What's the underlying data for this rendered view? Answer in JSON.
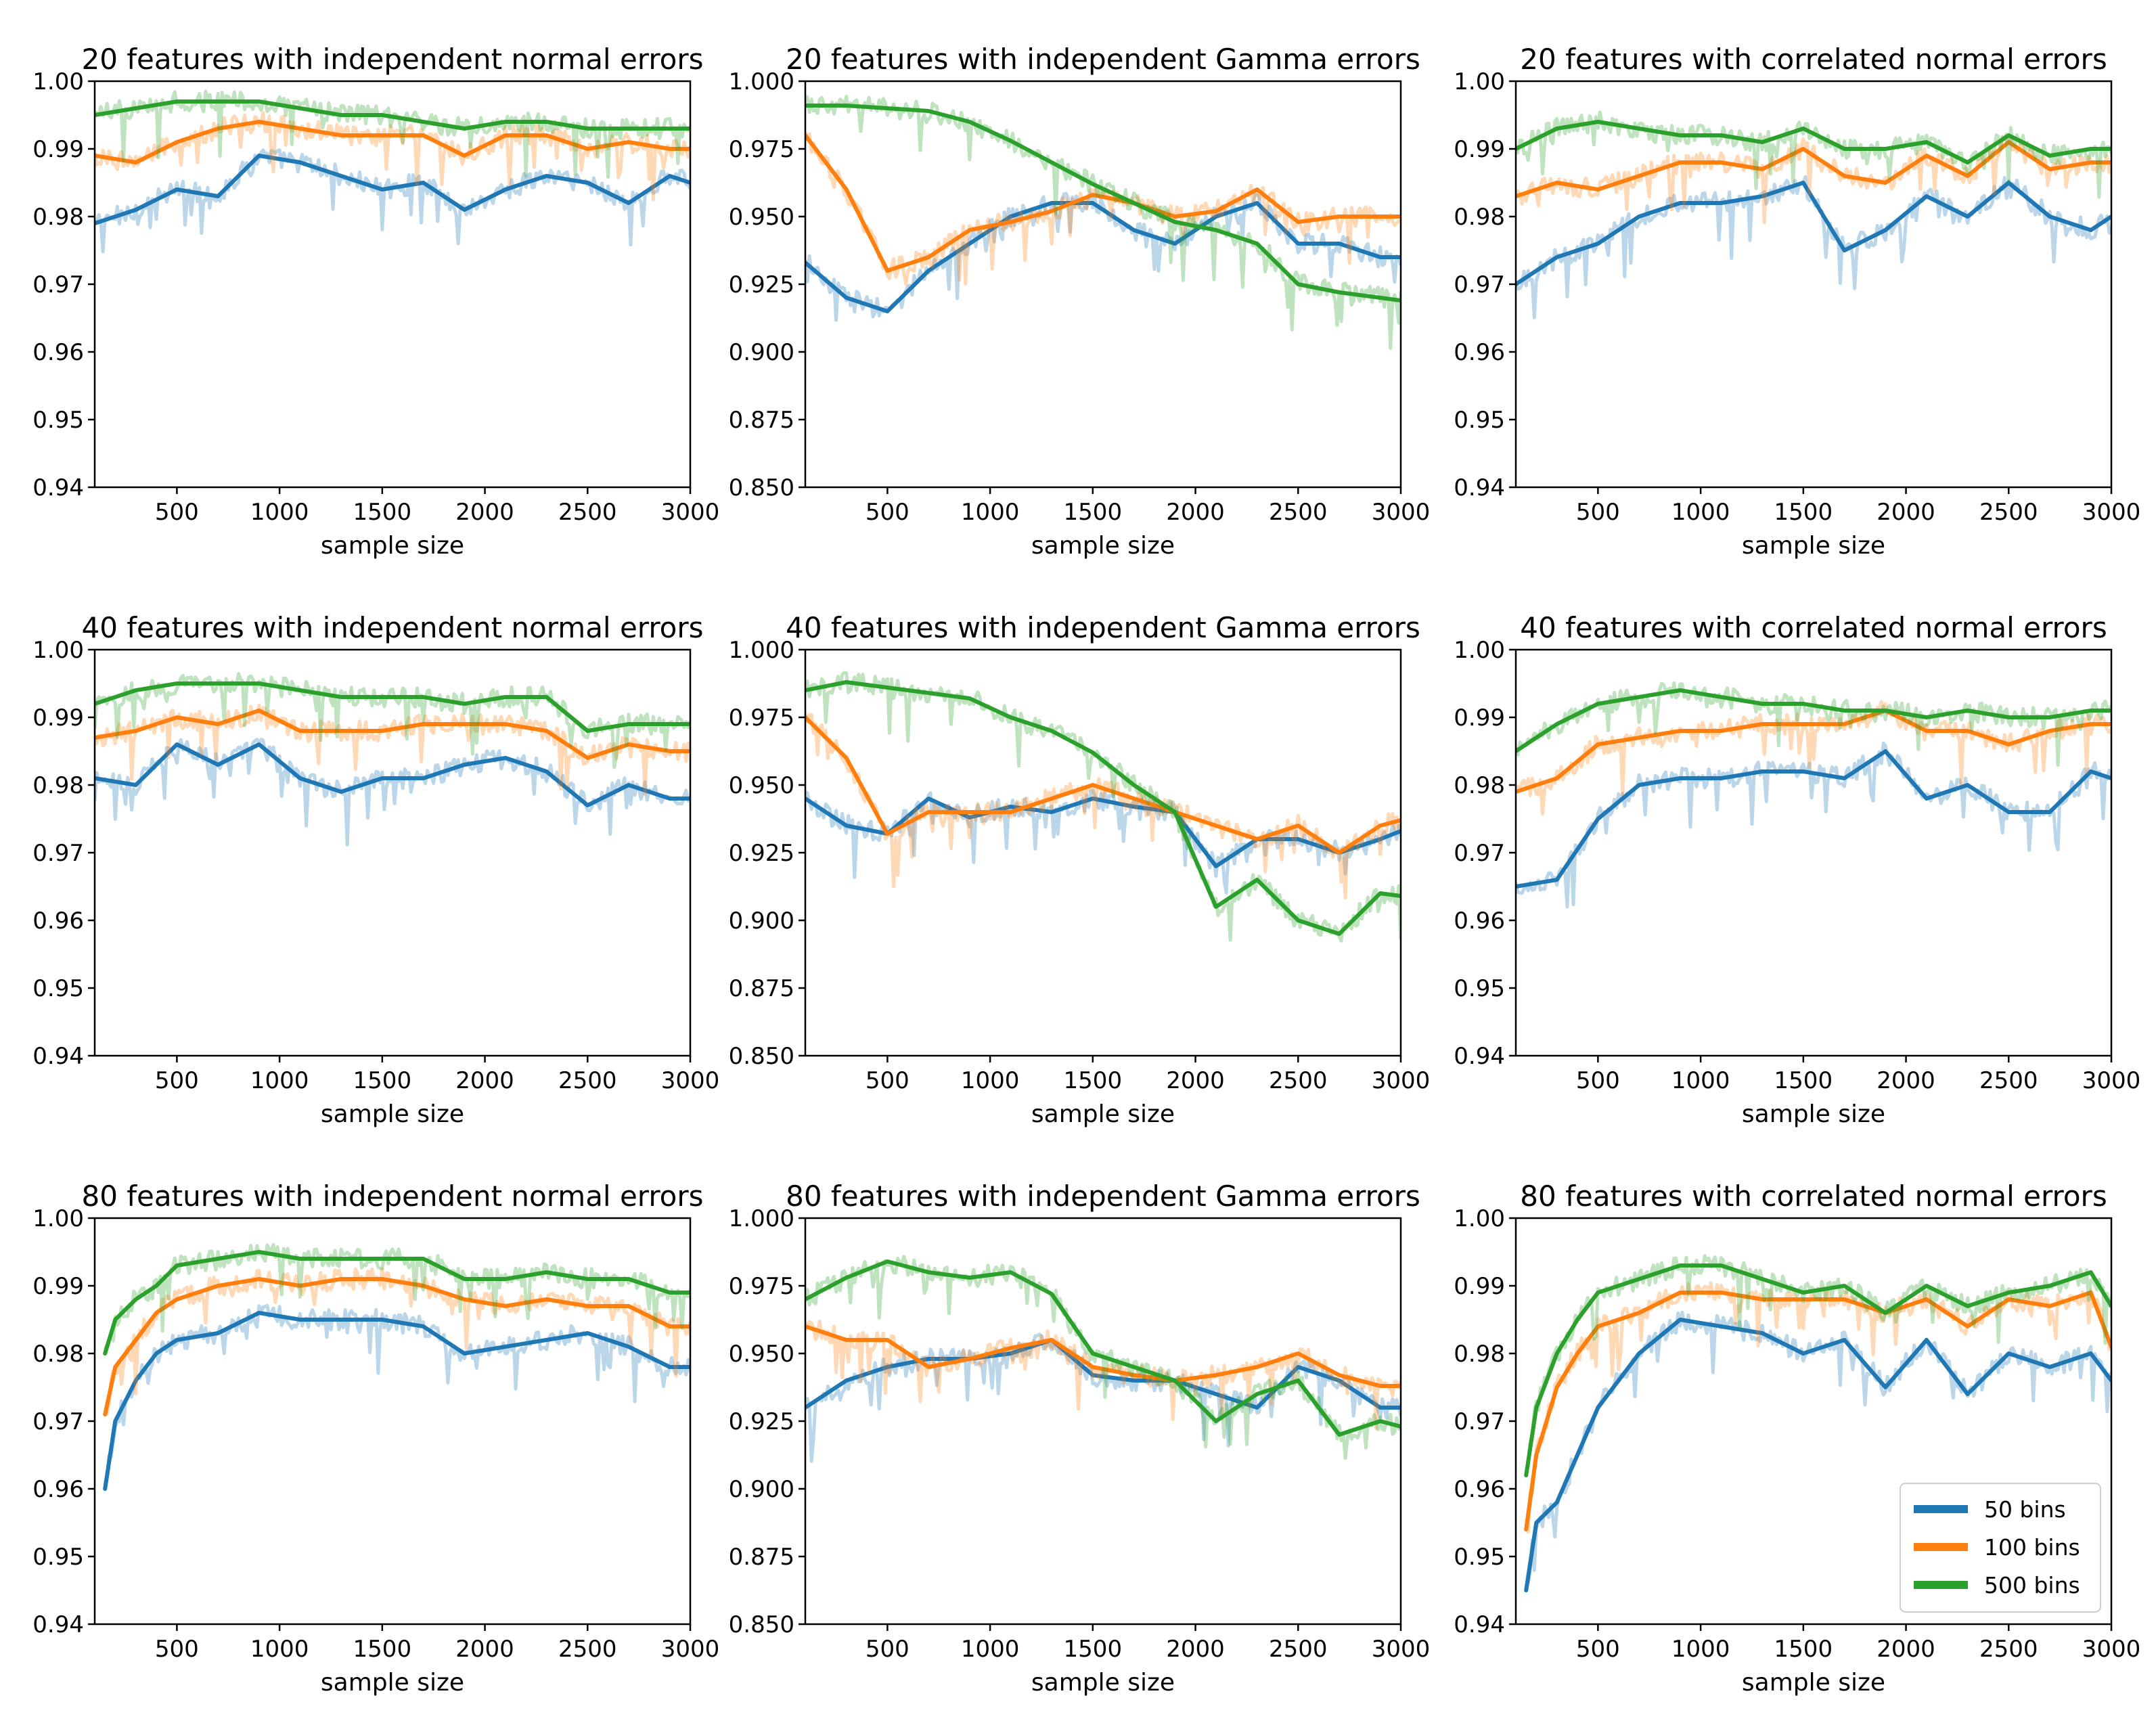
{
  "figure_legend": {
    "series": [
      {
        "name": "50 bins",
        "color": "#1f77b4"
      },
      {
        "name": "100 bins",
        "color": "#ff7f0e"
      },
      {
        "name": "500 bins",
        "color": "#2ca02c"
      }
    ],
    "placement": "lower-right of bottom-right panel"
  },
  "chart_data": [
    {
      "type": "line",
      "title": "20 features with independent normal errors",
      "xlabel": "sample size",
      "ylabel": "",
      "xlim": [
        100,
        3000
      ],
      "ylim": [
        0.94,
        1.0
      ],
      "xticks": [
        500,
        1000,
        1500,
        2000,
        2500,
        3000
      ],
      "yticks": [
        "0.94",
        "0.95",
        "0.96",
        "0.97",
        "0.98",
        "0.99",
        "1.00"
      ],
      "x": [
        100,
        300,
        500,
        700,
        900,
        1100,
        1300,
        1500,
        1700,
        1900,
        2100,
        2300,
        2500,
        2700,
        2900,
        3000
      ],
      "series": [
        {
          "name": "50 bins",
          "values": [
            0.979,
            0.981,
            0.984,
            0.983,
            0.989,
            0.988,
            0.986,
            0.984,
            0.985,
            0.981,
            0.984,
            0.986,
            0.985,
            0.982,
            0.986,
            0.985
          ]
        },
        {
          "name": "100 bins",
          "values": [
            0.989,
            0.988,
            0.991,
            0.993,
            0.994,
            0.993,
            0.992,
            0.992,
            0.992,
            0.989,
            0.992,
            0.992,
            0.99,
            0.991,
            0.99,
            0.99
          ]
        },
        {
          "name": "500 bins",
          "values": [
            0.995,
            0.996,
            0.997,
            0.997,
            0.997,
            0.996,
            0.995,
            0.995,
            0.994,
            0.993,
            0.994,
            0.994,
            0.993,
            0.993,
            0.993,
            0.993
          ]
        }
      ]
    },
    {
      "type": "line",
      "title": "20 features with independent Gamma errors",
      "xlabel": "sample size",
      "ylabel": "",
      "xlim": [
        100,
        3000
      ],
      "ylim": [
        0.85,
        1.0
      ],
      "xticks": [
        500,
        1000,
        1500,
        2000,
        2500,
        3000
      ],
      "yticks": [
        "0.850",
        "0.875",
        "0.900",
        "0.925",
        "0.950",
        "0.975",
        "1.000"
      ],
      "x": [
        100,
        300,
        500,
        700,
        900,
        1100,
        1300,
        1500,
        1700,
        1900,
        2100,
        2300,
        2500,
        2700,
        2900,
        3000
      ],
      "series": [
        {
          "name": "50 bins",
          "values": [
            0.933,
            0.92,
            0.915,
            0.93,
            0.94,
            0.95,
            0.955,
            0.955,
            0.945,
            0.94,
            0.95,
            0.955,
            0.94,
            0.94,
            0.935,
            0.935
          ]
        },
        {
          "name": "100 bins",
          "values": [
            0.98,
            0.96,
            0.93,
            0.935,
            0.945,
            0.948,
            0.952,
            0.958,
            0.955,
            0.95,
            0.952,
            0.96,
            0.948,
            0.95,
            0.95,
            0.95
          ]
        },
        {
          "name": "500 bins",
          "values": [
            0.991,
            0.991,
            0.99,
            0.989,
            0.985,
            0.978,
            0.97,
            0.962,
            0.955,
            0.948,
            0.945,
            0.94,
            0.925,
            0.922,
            0.92,
            0.919
          ]
        }
      ]
    },
    {
      "type": "line",
      "title": "20 features with correlated normal errors",
      "xlabel": "sample size",
      "ylabel": "",
      "xlim": [
        100,
        3000
      ],
      "ylim": [
        0.94,
        1.0
      ],
      "xticks": [
        500,
        1000,
        1500,
        2000,
        2500,
        3000
      ],
      "yticks": [
        "0.94",
        "0.95",
        "0.96",
        "0.97",
        "0.98",
        "0.99",
        "1.00"
      ],
      "x": [
        100,
        300,
        500,
        700,
        900,
        1100,
        1300,
        1500,
        1700,
        1900,
        2100,
        2300,
        2500,
        2700,
        2900,
        3000
      ],
      "series": [
        {
          "name": "50 bins",
          "values": [
            0.97,
            0.974,
            0.976,
            0.98,
            0.982,
            0.982,
            0.983,
            0.985,
            0.975,
            0.978,
            0.983,
            0.98,
            0.985,
            0.98,
            0.978,
            0.98
          ]
        },
        {
          "name": "100 bins",
          "values": [
            0.983,
            0.985,
            0.984,
            0.986,
            0.988,
            0.988,
            0.987,
            0.99,
            0.986,
            0.985,
            0.989,
            0.986,
            0.991,
            0.987,
            0.988,
            0.988
          ]
        },
        {
          "name": "500 bins",
          "values": [
            0.99,
            0.993,
            0.994,
            0.993,
            0.992,
            0.992,
            0.991,
            0.993,
            0.99,
            0.99,
            0.991,
            0.988,
            0.992,
            0.989,
            0.99,
            0.99
          ]
        }
      ]
    },
    {
      "type": "line",
      "title": "40 features with independent normal errors",
      "xlabel": "sample size",
      "ylabel": "",
      "xlim": [
        100,
        3000
      ],
      "ylim": [
        0.94,
        1.0
      ],
      "xticks": [
        500,
        1000,
        1500,
        2000,
        2500,
        3000
      ],
      "yticks": [
        "0.94",
        "0.95",
        "0.96",
        "0.97",
        "0.98",
        "0.99",
        "1.00"
      ],
      "x": [
        100,
        300,
        500,
        700,
        900,
        1100,
        1300,
        1500,
        1700,
        1900,
        2100,
        2300,
        2500,
        2700,
        2900,
        3000
      ],
      "series": [
        {
          "name": "50 bins",
          "values": [
            0.981,
            0.98,
            0.986,
            0.983,
            0.986,
            0.981,
            0.979,
            0.981,
            0.981,
            0.983,
            0.984,
            0.982,
            0.977,
            0.98,
            0.978,
            0.978
          ]
        },
        {
          "name": "100 bins",
          "values": [
            0.987,
            0.988,
            0.99,
            0.989,
            0.991,
            0.988,
            0.988,
            0.988,
            0.989,
            0.989,
            0.989,
            0.988,
            0.984,
            0.986,
            0.985,
            0.985
          ]
        },
        {
          "name": "500 bins",
          "values": [
            0.992,
            0.994,
            0.995,
            0.995,
            0.995,
            0.994,
            0.993,
            0.993,
            0.993,
            0.992,
            0.993,
            0.993,
            0.988,
            0.989,
            0.989,
            0.989
          ]
        }
      ]
    },
    {
      "type": "line",
      "title": "40 features with independent Gamma errors",
      "xlabel": "sample size",
      "ylabel": "",
      "xlim": [
        100,
        3000
      ],
      "ylim": [
        0.85,
        1.0
      ],
      "xticks": [
        500,
        1000,
        1500,
        2000,
        2500,
        3000
      ],
      "yticks": [
        "0.850",
        "0.875",
        "0.900",
        "0.925",
        "0.950",
        "0.975",
        "1.000"
      ],
      "x": [
        100,
        300,
        500,
        700,
        900,
        1100,
        1300,
        1500,
        1700,
        1900,
        2100,
        2300,
        2500,
        2700,
        2900,
        3000
      ],
      "series": [
        {
          "name": "50 bins",
          "values": [
            0.945,
            0.935,
            0.932,
            0.945,
            0.938,
            0.942,
            0.94,
            0.945,
            0.942,
            0.94,
            0.92,
            0.93,
            0.93,
            0.925,
            0.93,
            0.933
          ]
        },
        {
          "name": "100 bins",
          "values": [
            0.975,
            0.96,
            0.932,
            0.94,
            0.94,
            0.94,
            0.945,
            0.95,
            0.945,
            0.94,
            0.935,
            0.93,
            0.935,
            0.925,
            0.935,
            0.937
          ]
        },
        {
          "name": "500 bins",
          "values": [
            0.985,
            0.988,
            0.986,
            0.984,
            0.982,
            0.975,
            0.97,
            0.962,
            0.95,
            0.94,
            0.905,
            0.915,
            0.9,
            0.895,
            0.91,
            0.909
          ]
        }
      ]
    },
    {
      "type": "line",
      "title": "40 features with correlated normal errors",
      "xlabel": "sample size",
      "ylabel": "",
      "xlim": [
        100,
        3000
      ],
      "ylim": [
        0.94,
        1.0
      ],
      "xticks": [
        500,
        1000,
        1500,
        2000,
        2500,
        3000
      ],
      "yticks": [
        "0.94",
        "0.95",
        "0.96",
        "0.97",
        "0.98",
        "0.99",
        "1.00"
      ],
      "x": [
        100,
        300,
        500,
        700,
        900,
        1100,
        1300,
        1500,
        1700,
        1900,
        2100,
        2300,
        2500,
        2700,
        2900,
        3000
      ],
      "series": [
        {
          "name": "50 bins",
          "values": [
            0.965,
            0.966,
            0.975,
            0.98,
            0.981,
            0.981,
            0.982,
            0.982,
            0.981,
            0.985,
            0.978,
            0.98,
            0.976,
            0.976,
            0.982,
            0.981
          ]
        },
        {
          "name": "100 bins",
          "values": [
            0.979,
            0.981,
            0.986,
            0.987,
            0.988,
            0.988,
            0.989,
            0.989,
            0.989,
            0.991,
            0.988,
            0.988,
            0.986,
            0.988,
            0.989,
            0.989
          ]
        },
        {
          "name": "500 bins",
          "values": [
            0.985,
            0.989,
            0.992,
            0.993,
            0.994,
            0.993,
            0.992,
            0.992,
            0.991,
            0.991,
            0.99,
            0.991,
            0.99,
            0.99,
            0.991,
            0.991
          ]
        }
      ]
    },
    {
      "type": "line",
      "title": "80 features with independent normal errors",
      "xlabel": "sample size",
      "ylabel": "",
      "xlim": [
        100,
        3000
      ],
      "ylim": [
        0.94,
        1.0
      ],
      "xticks": [
        500,
        1000,
        1500,
        2000,
        2500,
        3000
      ],
      "yticks": [
        "0.94",
        "0.95",
        "0.96",
        "0.97",
        "0.98",
        "0.99",
        "1.00"
      ],
      "x": [
        150,
        200,
        300,
        400,
        500,
        700,
        900,
        1100,
        1300,
        1500,
        1700,
        1900,
        2100,
        2300,
        2500,
        2700,
        2900,
        3000
      ],
      "series": [
        {
          "name": "50 bins",
          "values": [
            0.96,
            0.97,
            0.976,
            0.98,
            0.982,
            0.983,
            0.986,
            0.985,
            0.985,
            0.985,
            0.984,
            0.98,
            0.981,
            0.982,
            0.983,
            0.981,
            0.978,
            0.978
          ]
        },
        {
          "name": "100 bins",
          "values": [
            0.971,
            0.978,
            0.982,
            0.986,
            0.988,
            0.99,
            0.991,
            0.99,
            0.991,
            0.991,
            0.99,
            0.988,
            0.987,
            0.988,
            0.987,
            0.987,
            0.984,
            0.984
          ]
        },
        {
          "name": "500 bins",
          "values": [
            0.98,
            0.985,
            0.988,
            0.99,
            0.993,
            0.994,
            0.995,
            0.994,
            0.994,
            0.994,
            0.994,
            0.991,
            0.991,
            0.992,
            0.991,
            0.991,
            0.989,
            0.989
          ]
        }
      ]
    },
    {
      "type": "line",
      "title": "80 features with independent Gamma errors",
      "xlabel": "sample size",
      "ylabel": "",
      "xlim": [
        100,
        3000
      ],
      "ylim": [
        0.85,
        1.0
      ],
      "xticks": [
        500,
        1000,
        1500,
        2000,
        2500,
        3000
      ],
      "yticks": [
        "0.850",
        "0.875",
        "0.900",
        "0.925",
        "0.950",
        "0.975",
        "1.000"
      ],
      "x": [
        100,
        300,
        500,
        700,
        900,
        1100,
        1300,
        1500,
        1700,
        1900,
        2100,
        2300,
        2500,
        2700,
        2900,
        3000
      ],
      "series": [
        {
          "name": "50 bins",
          "values": [
            0.93,
            0.94,
            0.945,
            0.948,
            0.948,
            0.95,
            0.955,
            0.942,
            0.94,
            0.94,
            0.935,
            0.93,
            0.945,
            0.94,
            0.93,
            0.93
          ]
        },
        {
          "name": "100 bins",
          "values": [
            0.96,
            0.955,
            0.955,
            0.945,
            0.948,
            0.952,
            0.955,
            0.945,
            0.942,
            0.94,
            0.942,
            0.945,
            0.95,
            0.942,
            0.938,
            0.938
          ]
        },
        {
          "name": "500 bins",
          "values": [
            0.97,
            0.978,
            0.984,
            0.98,
            0.978,
            0.98,
            0.972,
            0.95,
            0.945,
            0.94,
            0.925,
            0.935,
            0.94,
            0.92,
            0.925,
            0.923
          ]
        }
      ]
    },
    {
      "type": "line",
      "title": "80 features with correlated normal errors",
      "xlabel": "sample size",
      "ylabel": "",
      "xlim": [
        100,
        3000
      ],
      "ylim": [
        0.94,
        1.0
      ],
      "xticks": [
        500,
        1000,
        1500,
        2000,
        2500,
        3000
      ],
      "yticks": [
        "0.94",
        "0.95",
        "0.96",
        "0.97",
        "0.98",
        "0.99",
        "1.00"
      ],
      "x": [
        150,
        200,
        300,
        400,
        500,
        700,
        900,
        1100,
        1300,
        1500,
        1700,
        1900,
        2100,
        2300,
        2500,
        2700,
        2900,
        3000
      ],
      "series": [
        {
          "name": "50 bins",
          "values": [
            0.945,
            0.955,
            0.958,
            0.965,
            0.972,
            0.98,
            0.985,
            0.984,
            0.983,
            0.98,
            0.982,
            0.975,
            0.982,
            0.974,
            0.98,
            0.978,
            0.98,
            0.976
          ]
        },
        {
          "name": "100 bins",
          "values": [
            0.954,
            0.965,
            0.975,
            0.98,
            0.984,
            0.986,
            0.989,
            0.989,
            0.988,
            0.988,
            0.988,
            0.986,
            0.988,
            0.984,
            0.988,
            0.987,
            0.989,
            0.981
          ]
        },
        {
          "name": "500 bins",
          "values": [
            0.962,
            0.972,
            0.98,
            0.985,
            0.989,
            0.991,
            0.993,
            0.993,
            0.991,
            0.989,
            0.99,
            0.986,
            0.99,
            0.987,
            0.989,
            0.99,
            0.992,
            0.987
          ]
        }
      ]
    }
  ]
}
